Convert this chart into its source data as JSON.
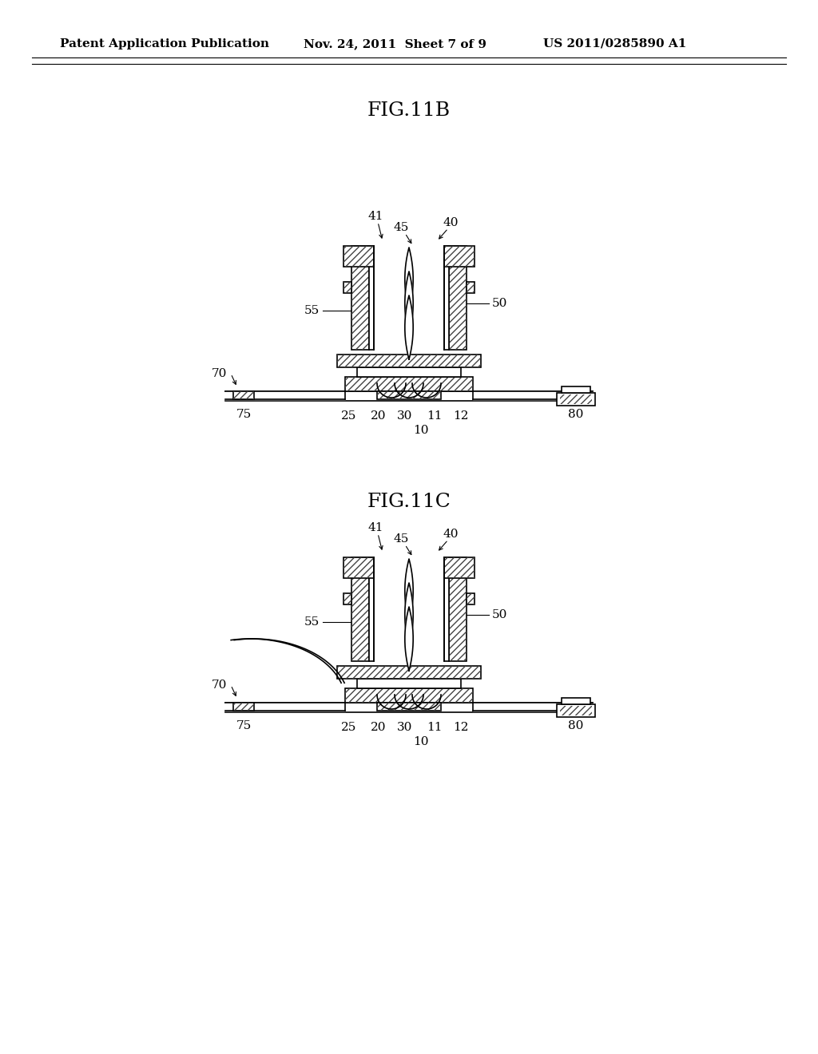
{
  "title_text": "Patent Application Publication",
  "date_text": "Nov. 24, 2011  Sheet 7 of 9",
  "patent_text": "US 2011/0285890 A1",
  "fig_b_title": "FIG.11B",
  "fig_c_title": "FIG.11C",
  "background": "#ffffff",
  "line_color": "#000000",
  "hatch_color": "#444444"
}
